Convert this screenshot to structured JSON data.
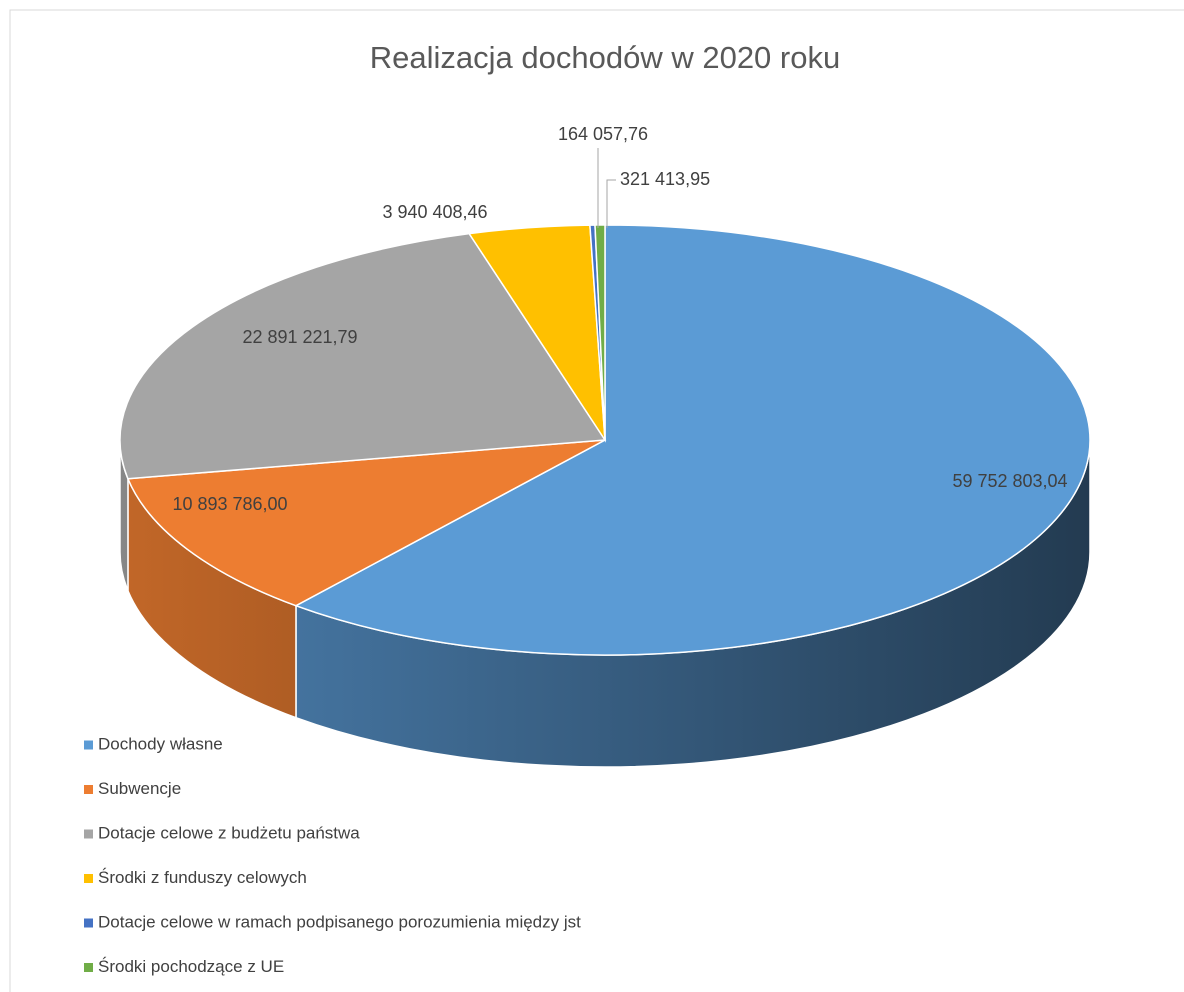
{
  "chart_data": {
    "type": "pie3d",
    "title": "Realizacja dochodów w 2020 roku",
    "categories": [
      "Dochody własne",
      "Subwencje",
      "Dotacje celowe z budżetu państwa",
      "Środki z funduszy celowych",
      "Dotacje celowe w ramach podpisanego porozumienia między jst",
      "Środki pochodzące z UE"
    ],
    "values": [
      59752803.04,
      10893786.0,
      22891221.79,
      3940408.46,
      164057.76,
      321413.95
    ],
    "value_labels": [
      "59 752 803,04",
      "10 893 786,00",
      "22 891 221,79",
      "3 940 408,46",
      "164 057,76",
      "321 413,95"
    ],
    "colors": [
      "#5b9bd5",
      "#ed7d31",
      "#a5a5a5",
      "#ffc000",
      "#4472c4",
      "#70ad47"
    ],
    "legend": "bottom-left"
  }
}
